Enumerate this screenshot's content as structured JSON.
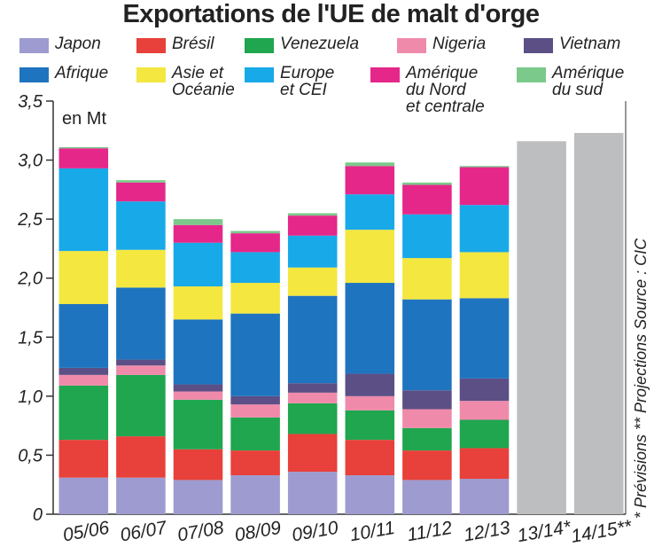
{
  "chart_data": {
    "type": "bar",
    "title": "Exportations de l'UE de malt d'orge",
    "unit_label": "en Mt",
    "ylim": [
      0,
      3.5
    ],
    "yticks": [
      "0",
      "0,5",
      "1,0",
      "1,5",
      "2,0",
      "2,5",
      "3,0",
      "3,5"
    ],
    "categories": [
      "05/06",
      "06/07",
      "07/08",
      "08/09",
      "09/10",
      "10/11",
      "11/12",
      "12/13",
      "13/14*",
      "14/15**"
    ],
    "series": [
      {
        "name": "Japon",
        "color": "#9d9bd0",
        "values": [
          0.31,
          0.31,
          0.29,
          0.33,
          0.36,
          0.33,
          0.29,
          0.3,
          0,
          0
        ]
      },
      {
        "name": "Brésil",
        "color": "#e8403a",
        "values": [
          0.32,
          0.35,
          0.26,
          0.21,
          0.32,
          0.3,
          0.25,
          0.26,
          0,
          0
        ]
      },
      {
        "name": "Venezuela",
        "color": "#1fa64f",
        "values": [
          0.46,
          0.52,
          0.42,
          0.28,
          0.26,
          0.25,
          0.19,
          0.24,
          0,
          0
        ]
      },
      {
        "name": "Nigeria",
        "color": "#ef8aaa",
        "values": [
          0.09,
          0.08,
          0.07,
          0.11,
          0.09,
          0.12,
          0.16,
          0.16,
          0,
          0
        ]
      },
      {
        "name": "Vietnam",
        "color": "#5b4f86",
        "values": [
          0.06,
          0.05,
          0.06,
          0.07,
          0.08,
          0.19,
          0.16,
          0.19,
          0,
          0
        ]
      },
      {
        "name": "Afrique",
        "color": "#1f74bf",
        "values": [
          0.54,
          0.61,
          0.55,
          0.7,
          0.74,
          0.77,
          0.77,
          0.68,
          0,
          0
        ]
      },
      {
        "name": "Asie et Océanie",
        "color": "#f3e740",
        "values": [
          0.45,
          0.32,
          0.28,
          0.26,
          0.24,
          0.45,
          0.35,
          0.39,
          0,
          0
        ]
      },
      {
        "name": "Europe et CEI",
        "color": "#18a9e8",
        "values": [
          0.7,
          0.41,
          0.37,
          0.26,
          0.27,
          0.3,
          0.37,
          0.4,
          0,
          0
        ]
      },
      {
        "name": "Amérique du Nord et centrale",
        "color": "#e5278a",
        "values": [
          0.17,
          0.16,
          0.15,
          0.16,
          0.17,
          0.24,
          0.25,
          0.32,
          0,
          0
        ]
      },
      {
        "name": "Amérique du sud",
        "color": "#7bc98b",
        "values": [
          0.01,
          0.02,
          0.05,
          0.02,
          0.02,
          0.03,
          0.02,
          0.01,
          0,
          0
        ]
      },
      {
        "name": "",
        "color": "#bcbec0",
        "values": [
          0,
          0,
          0,
          0,
          0,
          0,
          0,
          0,
          3.16,
          3.23
        ]
      }
    ],
    "annotation": "* Prévisions ** Projections  Source : CIC",
    "legend_position": "top",
    "grid": false
  }
}
